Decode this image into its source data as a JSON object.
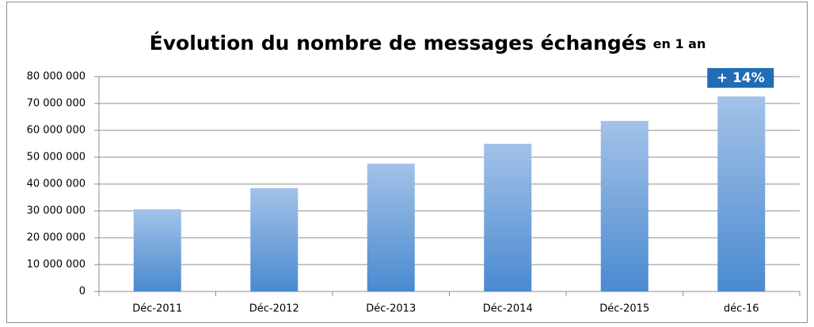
{
  "chart_data": {
    "type": "bar",
    "title": "Évolution du nombre de messages échangés",
    "subtitle": "en 1 an",
    "annotation": "+ 14%",
    "categories": [
      "Déc-2011",
      "Déc-2012",
      "Déc-2013",
      "Déc-2014",
      "Déc-2015",
      "déc-16"
    ],
    "values": [
      30600000,
      38500000,
      47600000,
      55000000,
      63500000,
      72600000
    ],
    "color": "#5b9bd5",
    "ylim": [
      0,
      80000000
    ],
    "yticks": [
      0,
      {
        "value": 10000000,
        "label": "10 000 000"
      },
      {
        "value": 20000000,
        "label": "20 000 000"
      },
      {
        "value": 30000000,
        "label": "30 000 000"
      },
      {
        "value": 40000000,
        "label": "40 000 000"
      },
      {
        "value": 50000000,
        "label": "50 000 000"
      },
      {
        "value": 60000000,
        "label": "60 000 000"
      },
      {
        "value": 70000000,
        "label": "70 000 000"
      },
      {
        "value": 80000000,
        "label": "80 000 000"
      }
    ],
    "grid": true
  }
}
